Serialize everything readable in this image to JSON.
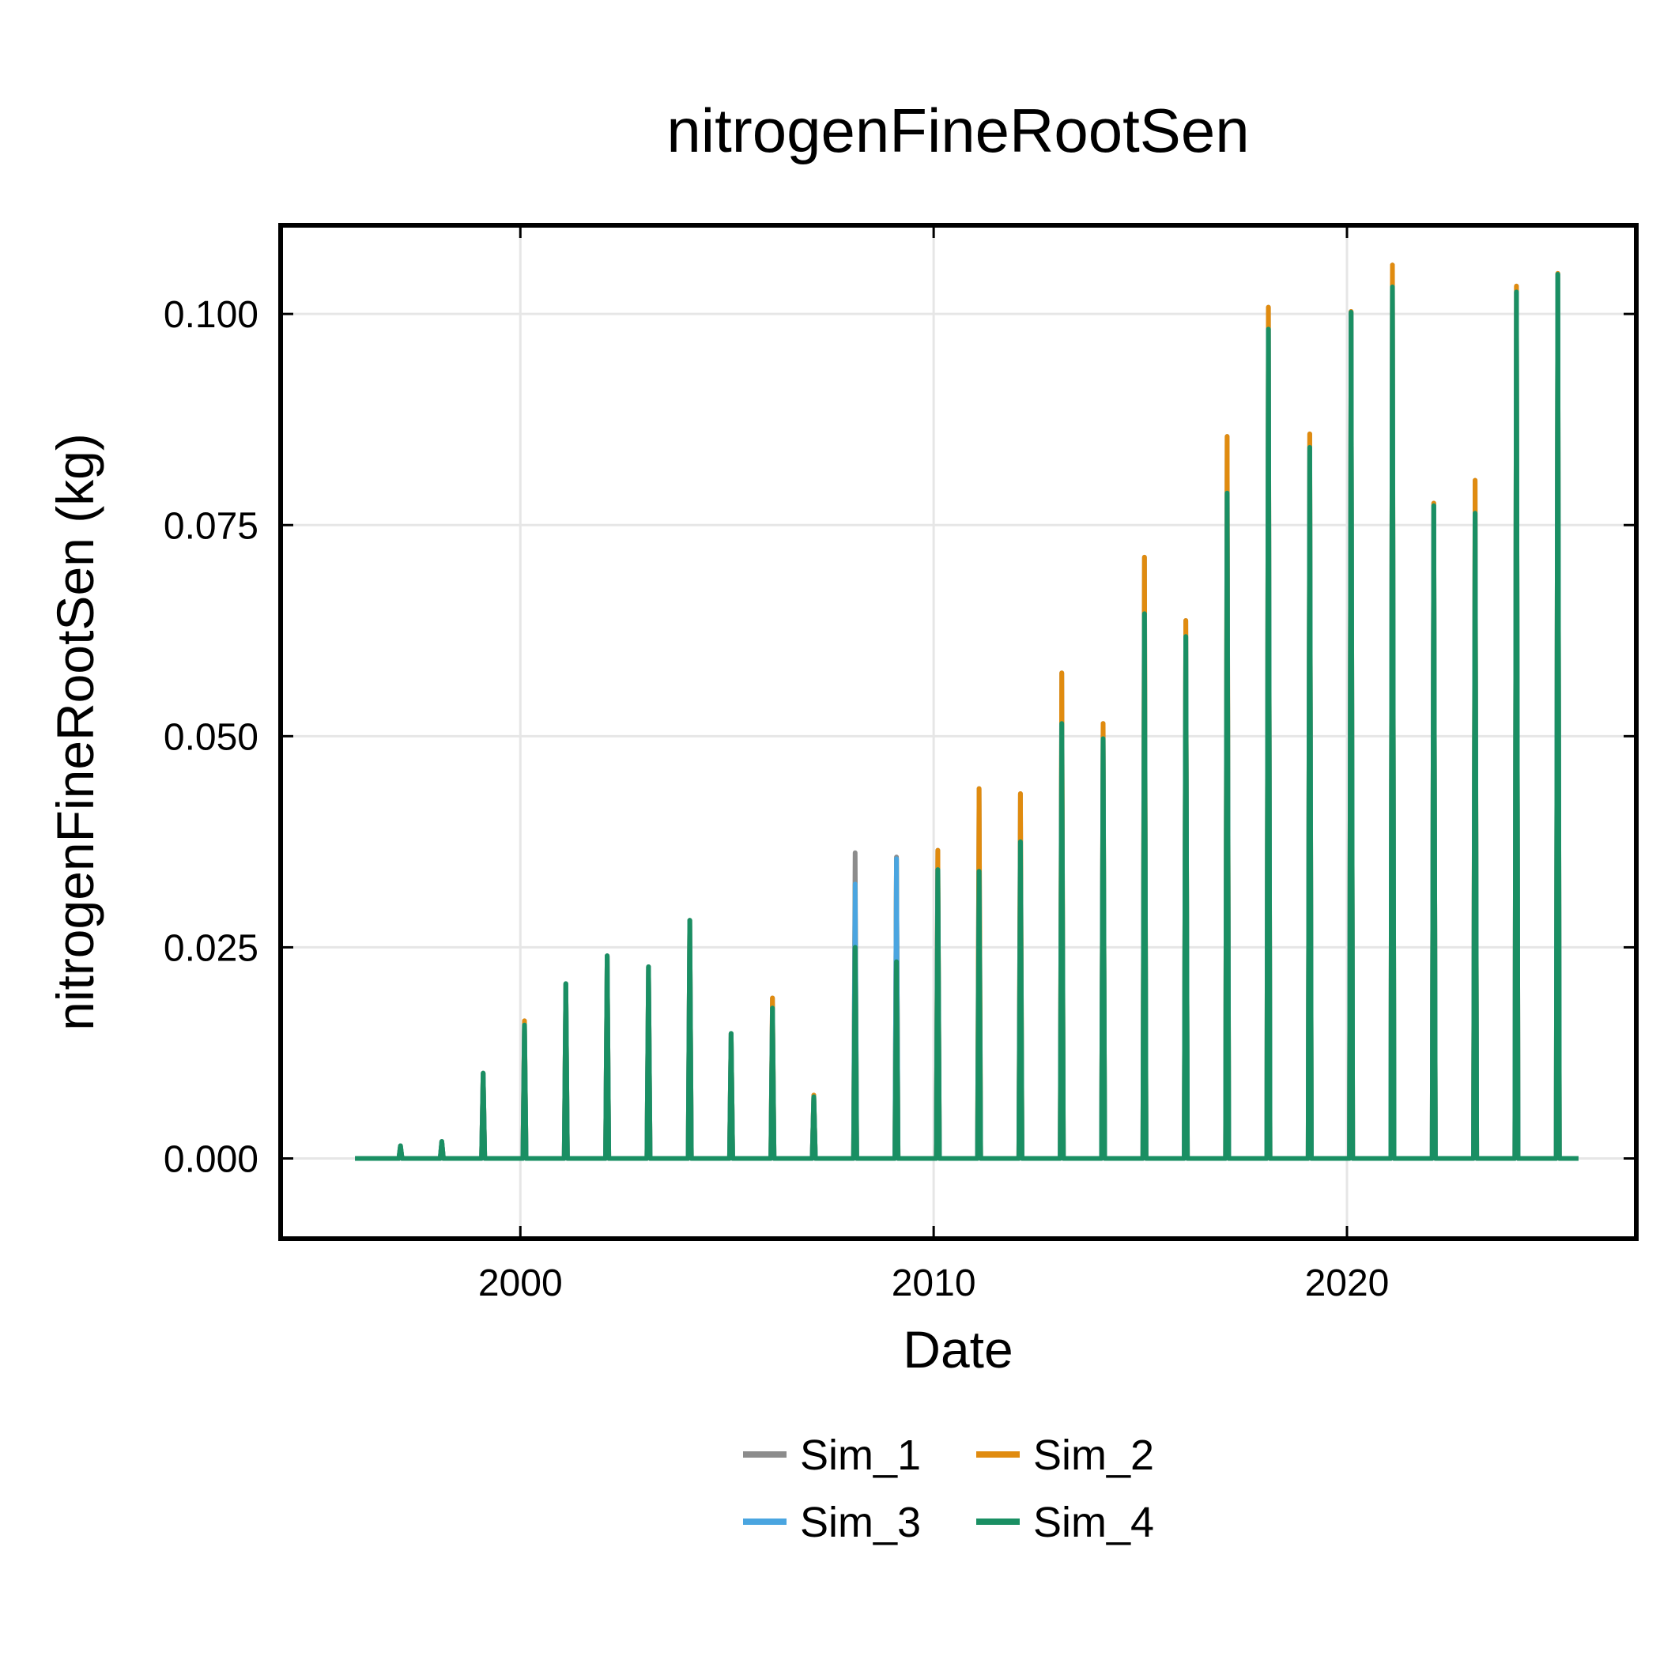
{
  "chart_data": {
    "type": "line",
    "title": "nitrogenFineRootSen",
    "xlabel": "Date",
    "ylabel": "nitrogenFineRootSen (kg)",
    "xlim": [
      1994.2,
      2027.0
    ],
    "ylim": [
      -0.0095,
      0.1105
    ],
    "xticks": [
      2000,
      2010,
      2020
    ],
    "yticks": [
      0.0,
      0.025,
      0.05,
      0.075,
      0.1
    ],
    "ytick_labels": [
      "0.000",
      "0.025",
      "0.050",
      "0.075",
      "0.100"
    ],
    "grid": true,
    "legend": {
      "position": "bottom-center",
      "columns": 2
    },
    "x_start": 1996.0,
    "x_end": 2025.6,
    "series": [
      {
        "name": "Sim_1",
        "color": "#8c8c8c",
        "peaks": [
          {
            "x": 1997.1,
            "y": 0.0015
          },
          {
            "x": 1998.1,
            "y": 0.002
          },
          {
            "x": 1999.1,
            "y": 0.0101
          },
          {
            "x": 2000.1,
            "y": 0.0163
          },
          {
            "x": 2001.1,
            "y": 0.0207
          },
          {
            "x": 2002.1,
            "y": 0.024
          },
          {
            "x": 2003.1,
            "y": 0.0227
          },
          {
            "x": 2004.1,
            "y": 0.0282
          },
          {
            "x": 2005.1,
            "y": 0.0148
          },
          {
            "x": 2006.1,
            "y": 0.019
          },
          {
            "x": 2007.1,
            "y": 0.0075
          },
          {
            "x": 2008.1,
            "y": 0.0362
          },
          {
            "x": 2009.1,
            "y": 0.0357
          },
          {
            "x": 2010.1,
            "y": 0.0365
          },
          {
            "x": 2011.1,
            "y": 0.0438
          },
          {
            "x": 2012.1,
            "y": 0.0432
          },
          {
            "x": 2013.1,
            "y": 0.0575
          },
          {
            "x": 2014.1,
            "y": 0.0515
          },
          {
            "x": 2015.1,
            "y": 0.0712
          },
          {
            "x": 2016.1,
            "y": 0.0637
          },
          {
            "x": 2017.1,
            "y": 0.0855
          },
          {
            "x": 2018.1,
            "y": 0.1008
          },
          {
            "x": 2019.1,
            "y": 0.0858
          },
          {
            "x": 2020.1,
            "y": 0.1003
          },
          {
            "x": 2021.1,
            "y": 0.1058
          },
          {
            "x": 2022.1,
            "y": 0.0776
          },
          {
            "x": 2023.1,
            "y": 0.0803
          },
          {
            "x": 2024.1,
            "y": 0.1033
          },
          {
            "x": 2025.1,
            "y": 0.1048
          }
        ]
      },
      {
        "name": "Sim_2",
        "color": "#e08b0f",
        "peaks": [
          {
            "x": 1997.1,
            "y": 0.0015
          },
          {
            "x": 1998.1,
            "y": 0.002
          },
          {
            "x": 1999.1,
            "y": 0.0101
          },
          {
            "x": 2000.1,
            "y": 0.0163
          },
          {
            "x": 2001.1,
            "y": 0.0207
          },
          {
            "x": 2002.1,
            "y": 0.024
          },
          {
            "x": 2003.1,
            "y": 0.0227
          },
          {
            "x": 2004.1,
            "y": 0.0282
          },
          {
            "x": 2005.1,
            "y": 0.0148
          },
          {
            "x": 2006.1,
            "y": 0.019
          },
          {
            "x": 2007.1,
            "y": 0.0075
          },
          {
            "x": 2008.1,
            "y": 0.0325
          },
          {
            "x": 2009.1,
            "y": 0.0355
          },
          {
            "x": 2010.1,
            "y": 0.0365
          },
          {
            "x": 2011.1,
            "y": 0.0438
          },
          {
            "x": 2012.1,
            "y": 0.0432
          },
          {
            "x": 2013.1,
            "y": 0.0575
          },
          {
            "x": 2014.1,
            "y": 0.0515
          },
          {
            "x": 2015.1,
            "y": 0.0712
          },
          {
            "x": 2016.1,
            "y": 0.0637
          },
          {
            "x": 2017.1,
            "y": 0.0855
          },
          {
            "x": 2018.1,
            "y": 0.1008
          },
          {
            "x": 2019.1,
            "y": 0.0858
          },
          {
            "x": 2020.1,
            "y": 0.1003
          },
          {
            "x": 2021.1,
            "y": 0.1058
          },
          {
            "x": 2022.1,
            "y": 0.0776
          },
          {
            "x": 2023.1,
            "y": 0.0803
          },
          {
            "x": 2024.1,
            "y": 0.1033
          },
          {
            "x": 2025.1,
            "y": 0.1048
          }
        ]
      },
      {
        "name": "Sim_3",
        "color": "#4aa5e0",
        "peaks": [
          {
            "x": 1997.1,
            "y": 0.0015
          },
          {
            "x": 1998.1,
            "y": 0.002
          },
          {
            "x": 1999.1,
            "y": 0.0101
          },
          {
            "x": 2000.1,
            "y": 0.0158
          },
          {
            "x": 2001.1,
            "y": 0.0207
          },
          {
            "x": 2002.1,
            "y": 0.024
          },
          {
            "x": 2003.1,
            "y": 0.0227
          },
          {
            "x": 2004.1,
            "y": 0.0282
          },
          {
            "x": 2005.1,
            "y": 0.0148
          },
          {
            "x": 2006.1,
            "y": 0.0178
          },
          {
            "x": 2007.1,
            "y": 0.0073
          },
          {
            "x": 2008.1,
            "y": 0.0325
          },
          {
            "x": 2009.1,
            "y": 0.0355
          },
          {
            "x": 2010.1,
            "y": 0.0342
          },
          {
            "x": 2011.1,
            "y": 0.034
          },
          {
            "x": 2012.1,
            "y": 0.0375
          },
          {
            "x": 2013.1,
            "y": 0.0515
          },
          {
            "x": 2014.1,
            "y": 0.0497
          },
          {
            "x": 2015.1,
            "y": 0.0645
          },
          {
            "x": 2016.1,
            "y": 0.0618
          },
          {
            "x": 2017.1,
            "y": 0.0788
          },
          {
            "x": 2018.1,
            "y": 0.0982
          },
          {
            "x": 2019.1,
            "y": 0.0842
          },
          {
            "x": 2020.1,
            "y": 0.1002
          },
          {
            "x": 2021.1,
            "y": 0.1032
          },
          {
            "x": 2022.1,
            "y": 0.0773
          },
          {
            "x": 2023.1,
            "y": 0.0764
          },
          {
            "x": 2024.1,
            "y": 0.1026
          },
          {
            "x": 2025.1,
            "y": 0.1047
          }
        ]
      },
      {
        "name": "Sim_4",
        "color": "#1a8f63",
        "peaks": [
          {
            "x": 1997.1,
            "y": 0.0015
          },
          {
            "x": 1998.1,
            "y": 0.002
          },
          {
            "x": 1999.1,
            "y": 0.0101
          },
          {
            "x": 2000.1,
            "y": 0.0158
          },
          {
            "x": 2001.1,
            "y": 0.0207
          },
          {
            "x": 2002.1,
            "y": 0.024
          },
          {
            "x": 2003.1,
            "y": 0.0227
          },
          {
            "x": 2004.1,
            "y": 0.0282
          },
          {
            "x": 2005.1,
            "y": 0.0148
          },
          {
            "x": 2006.1,
            "y": 0.0178
          },
          {
            "x": 2007.1,
            "y": 0.0073
          },
          {
            "x": 2008.1,
            "y": 0.025
          },
          {
            "x": 2009.1,
            "y": 0.0233
          },
          {
            "x": 2010.1,
            "y": 0.0342
          },
          {
            "x": 2011.1,
            "y": 0.034
          },
          {
            "x": 2012.1,
            "y": 0.0375
          },
          {
            "x": 2013.1,
            "y": 0.0515
          },
          {
            "x": 2014.1,
            "y": 0.0497
          },
          {
            "x": 2015.1,
            "y": 0.0645
          },
          {
            "x": 2016.1,
            "y": 0.0618
          },
          {
            "x": 2017.1,
            "y": 0.0788
          },
          {
            "x": 2018.1,
            "y": 0.0982
          },
          {
            "x": 2019.1,
            "y": 0.0842
          },
          {
            "x": 2020.1,
            "y": 0.1002
          },
          {
            "x": 2021.1,
            "y": 0.1032
          },
          {
            "x": 2022.1,
            "y": 0.0773
          },
          {
            "x": 2023.1,
            "y": 0.0764
          },
          {
            "x": 2024.1,
            "y": 0.1026
          },
          {
            "x": 2025.1,
            "y": 0.1047
          }
        ]
      }
    ]
  }
}
